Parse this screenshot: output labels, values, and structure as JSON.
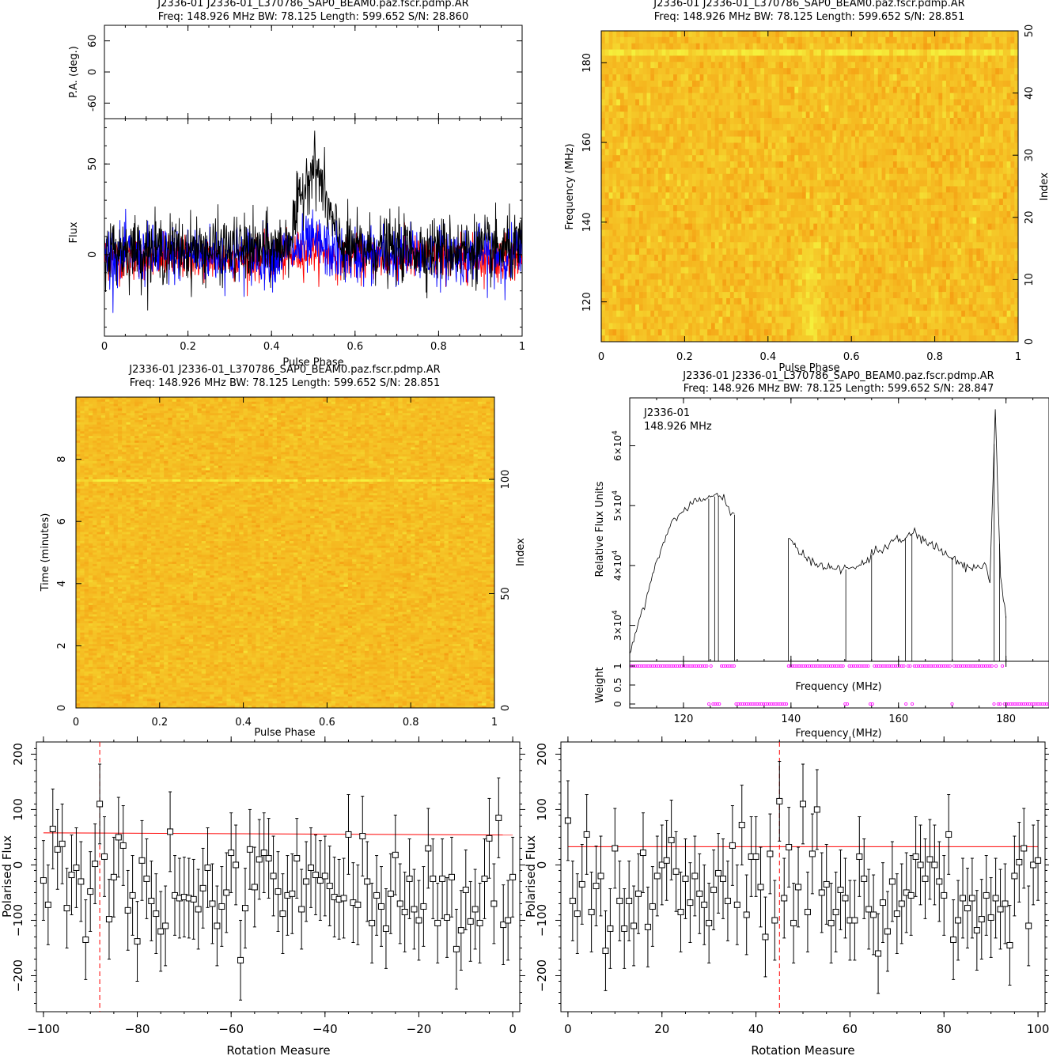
{
  "colors": {
    "background": "#ffffff",
    "axis": "#000000",
    "total_intensity": "#000000",
    "linear_pol": "#ff0000",
    "circular_pol": "#0000ff",
    "fit_line": "#ff0000",
    "weight_points": "#ff00ff",
    "colormap_low": "#e8a020",
    "colormap_high": "#ffee50"
  },
  "chart_data": [
    {
      "id": "profile",
      "type": "line",
      "title": "J2336-01 J2336-01_L370786_SAP0_BEAM0.paz.fscr.pdmp.AR",
      "subtitle": "Freq: 148.926 MHz BW: 78.125 Length: 599.652 S/N: 28.860",
      "xlabel": "Pulse Phase",
      "xlim": [
        0,
        1
      ],
      "x_ticks": [
        "0",
        "0.2",
        "0.4",
        "0.6",
        "0.8",
        "1"
      ],
      "pa_panel": {
        "ylabel": "P.A. (deg.)",
        "ylim": [
          -90,
          90
        ],
        "y_ticks": [
          "-60",
          "0",
          "60"
        ]
      },
      "flux_panel": {
        "ylabel": "Flux",
        "ylim": [
          -45,
          75
        ],
        "y_ticks": [
          "0",
          "50"
        ]
      },
      "series": [
        {
          "color": "#000000",
          "noise": 9,
          "baseline": 3,
          "pulse_center": 0.5,
          "pulse_width": 0.03,
          "pulse_height": 45
        },
        {
          "color": "#ff0000",
          "noise": 6,
          "baseline": -2,
          "pulse_center": 0.5,
          "pulse_width": 0.03,
          "pulse_height": 5
        },
        {
          "color": "#0000ff",
          "noise": 8,
          "baseline": 0,
          "pulse_center": 0.5,
          "pulse_width": 0.03,
          "pulse_height": 6
        }
      ]
    },
    {
      "id": "freq_phase",
      "type": "heatmap",
      "title": "J2336-01 J2336-01_L370786_SAP0_BEAM0.paz.fscr.pdmp.AR",
      "subtitle": "Freq: 148.926 MHz BW: 78.125 Length: 599.652 S/N: 28.851",
      "xlabel": "Pulse Phase",
      "ylabel": "Frequency (MHz)",
      "y2label": "Index",
      "xlim": [
        0,
        1
      ],
      "ylim": [
        110,
        188
      ],
      "y2lim": [
        0,
        50
      ],
      "x_ticks": [
        "0",
        "0.2",
        "0.4",
        "0.6",
        "0.8",
        "1"
      ],
      "y_ticks": [
        "120",
        "140",
        "160",
        "180"
      ],
      "y2_ticks": [
        "0",
        "10",
        "20",
        "30",
        "40",
        "50"
      ],
      "bright_channel_mhz": 183,
      "pulse_phase": 0.5
    },
    {
      "id": "time_phase",
      "type": "heatmap",
      "title": "J2336-01 J2336-01_L370786_SAP0_BEAM0.paz.fscr.pdmp.AR",
      "subtitle": "Freq: 148.926 MHz BW: 78.125 Length: 599.652 S/N: 28.851",
      "xlabel": "Pulse Phase",
      "ylabel": "Time (minutes)",
      "y2label": "Index",
      "xlim": [
        0,
        1
      ],
      "ylim": [
        0,
        10
      ],
      "y2lim": [
        0,
        136
      ],
      "x_ticks": [
        "0",
        "0.2",
        "0.4",
        "0.6",
        "0.8",
        "1"
      ],
      "y_ticks": [
        "0",
        "2",
        "4",
        "6",
        "8"
      ],
      "y2_ticks": [
        "0",
        "50",
        "100"
      ],
      "bright_subint_minutes": 7.3
    },
    {
      "id": "bandpass",
      "type": "line",
      "title": "J2336-01 J2336-01_L370786_SAP0_BEAM0.paz.fscr.pdmp.AR",
      "subtitle": "Freq: 148.926 MHz BW: 78.125 Length: 599.652 S/N: 28.847",
      "annotation": [
        "J2336-01",
        "148.926 MHz"
      ],
      "xlabel": "Frequency (MHz)",
      "ylabel": "Relative Flux Units",
      "xlim": [
        110,
        188
      ],
      "ylim": [
        24000,
        68000
      ],
      "x_ticks": [
        "120",
        "140",
        "160",
        "180"
      ],
      "y_tick_labels": [
        {
          "mant": "3×10",
          "exp": "4",
          "v": 30000
        },
        {
          "mant": "4×10",
          "exp": "4",
          "v": 40000
        },
        {
          "mant": "5×10",
          "exp": "4",
          "v": 50000
        },
        {
          "mant": "6×10",
          "exp": "4",
          "v": 60000
        }
      ],
      "weight_panel": {
        "ylabel": "Weight",
        "xlabel": "Frequency (MHz)",
        "y_ticks": [
          "0",
          "0.5",
          "1"
        ]
      },
      "x": [
        110,
        111,
        112,
        113,
        114,
        115,
        116,
        117,
        118,
        119,
        120,
        121,
        122,
        123,
        124,
        125,
        126,
        127,
        128,
        129.5,
        139.5,
        140.5,
        141,
        142,
        143,
        144,
        145,
        146,
        147,
        148,
        149,
        150,
        151,
        152,
        153,
        154,
        155,
        156,
        157,
        158,
        159,
        160,
        161,
        162,
        163,
        164,
        165,
        166,
        167,
        168,
        169,
        170,
        171,
        172,
        173,
        174,
        175,
        176,
        177,
        178,
        179,
        180
      ],
      "values": [
        25000,
        28500,
        31500,
        34500,
        37500,
        40500,
        43000,
        45500,
        47500,
        48500,
        49000,
        50000,
        50700,
        50800,
        51000,
        51200,
        51600,
        51700,
        50500,
        48500,
        44500,
        43500,
        42500,
        41700,
        41300,
        40800,
        40300,
        40000,
        39800,
        39500,
        39400,
        39300,
        39500,
        39600,
        40300,
        40900,
        41700,
        42400,
        42800,
        43500,
        44000,
        44200,
        44300,
        45000,
        45500,
        44800,
        44000,
        43500,
        43000,
        42400,
        41700,
        41300,
        40700,
        40000,
        39600,
        39700,
        39800,
        40300,
        37400,
        66000,
        38000,
        31500
      ],
      "zapped_channels_mhz": [
        124.7,
        125.8,
        126.5,
        150.2,
        155.0,
        161.3,
        162.5,
        170.0,
        177.8,
        178.8
      ],
      "weight_zero_ranges": [
        [
          129.5,
          139.5
        ],
        [
          179.5,
          188
        ]
      ]
    },
    {
      "id": "rm_neg",
      "type": "scatter",
      "xlabel": "Rotation Measure",
      "ylabel": "Polarised Flux",
      "xlim": [
        -101.5,
        1.5
      ],
      "ylim": [
        -265,
        222
      ],
      "x_ticks": [
        "−100",
        "−80",
        "−60",
        "−40",
        "−20",
        "0"
      ],
      "y_ticks": [
        "−200",
        "−100",
        "0",
        "100",
        "200"
      ],
      "rm_best": -88,
      "fit_line": [
        [
          -100,
          58
        ],
        [
          0,
          54
        ]
      ],
      "error": 72,
      "x": [
        -100,
        -99,
        -98,
        -97,
        -96,
        -95,
        -94,
        -93,
        -92,
        -91,
        -90,
        -89,
        -88,
        -87,
        -86,
        -85,
        -84,
        -83,
        -82,
        -81,
        -80,
        -79,
        -78,
        -77,
        -76,
        -75,
        -74,
        -73,
        -72,
        -71,
        -70,
        -69,
        -68,
        -67,
        -66,
        -65,
        -64,
        -63,
        -62,
        -61,
        -60,
        -59,
        -58,
        -57,
        -56,
        -55,
        -54,
        -53,
        -52,
        -51,
        -50,
        -49,
        -48,
        -47,
        -46,
        -45,
        -44,
        -43,
        -42,
        -41,
        -40,
        -39,
        -38,
        -37,
        -36,
        -35,
        -34,
        -33,
        -32,
        -31,
        -30,
        -29,
        -28,
        -27,
        -26,
        -25,
        -24,
        -23,
        -22,
        -21,
        -20,
        -19,
        -18,
        -17,
        -16,
        -15,
        -14,
        -13,
        -12,
        -11,
        -10,
        -9,
        -8,
        -7,
        -6,
        -5,
        -4,
        -3,
        -2,
        -1,
        0
      ],
      "y": [
        -28,
        -72,
        65,
        28,
        38,
        -78,
        -18,
        -5,
        -30,
        -135,
        -48,
        2,
        110,
        15,
        -98,
        -22,
        50,
        35,
        -82,
        -55,
        -138,
        8,
        -25,
        -65,
        -88,
        -120,
        -110,
        60,
        -55,
        -60,
        -58,
        -60,
        -62,
        -80,
        -42,
        -5,
        -70,
        -110,
        -75,
        -50,
        22,
        0,
        -172,
        -78,
        28,
        -40,
        10,
        22,
        12,
        -20,
        -48,
        -88,
        -55,
        -52,
        12,
        -80,
        -30,
        -5,
        -18,
        -28,
        -20,
        -38,
        -58,
        -62,
        -60,
        55,
        -68,
        -72,
        52,
        -30,
        -105,
        -55,
        -75,
        -115,
        -52,
        18,
        -70,
        -85,
        -25,
        -80,
        -100,
        -75,
        30,
        -25,
        -105,
        -25,
        -95,
        -22,
        -152,
        -118,
        -45,
        -102,
        -80,
        -105,
        -25,
        48,
        -70,
        85,
        -108,
        -100,
        -22
      ]
    },
    {
      "id": "rm_pos",
      "type": "scatter",
      "xlabel": "Rotation Measure",
      "ylabel": "Polarised Flux",
      "xlim": [
        -1.5,
        101.5
      ],
      "ylim": [
        -265,
        222
      ],
      "x_ticks": [
        "0",
        "20",
        "40",
        "60",
        "80",
        "100"
      ],
      "y_ticks": [
        "−200",
        "−100",
        "0",
        "100",
        "200"
      ],
      "rm_best": 45,
      "fit_line": [
        [
          0,
          33
        ],
        [
          100,
          33
        ]
      ],
      "error": 72,
      "x": [
        0,
        1,
        2,
        3,
        4,
        5,
        6,
        7,
        8,
        9,
        10,
        11,
        12,
        13,
        14,
        15,
        16,
        17,
        18,
        19,
        20,
        21,
        22,
        23,
        24,
        25,
        26,
        27,
        28,
        29,
        30,
        31,
        32,
        33,
        34,
        35,
        36,
        37,
        38,
        39,
        40,
        41,
        42,
        43,
        44,
        45,
        46,
        47,
        48,
        49,
        50,
        51,
        52,
        53,
        54,
        55,
        56,
        57,
        58,
        59,
        60,
        61,
        62,
        63,
        64,
        65,
        66,
        67,
        68,
        69,
        70,
        71,
        72,
        73,
        74,
        75,
        76,
        77,
        78,
        79,
        80,
        81,
        82,
        83,
        84,
        85,
        86,
        87,
        88,
        89,
        90,
        91,
        92,
        93,
        94,
        95,
        96,
        97,
        98,
        99,
        100
      ],
      "y": [
        80,
        -65,
        -88,
        -35,
        55,
        -85,
        -38,
        -20,
        -155,
        -115,
        30,
        -65,
        -115,
        -65,
        -110,
        -52,
        22,
        -112,
        -75,
        -20,
        0,
        8,
        45,
        -12,
        -85,
        -25,
        -68,
        -20,
        -52,
        -72,
        -105,
        -45,
        -15,
        -25,
        -65,
        35,
        -72,
        72,
        -90,
        15,
        15,
        -40,
        -130,
        20,
        -100,
        115,
        -60,
        32,
        -105,
        -40,
        110,
        -85,
        20,
        100,
        -50,
        -35,
        -105,
        -85,
        -45,
        -60,
        -100,
        -100,
        15,
        -25,
        -80,
        -90,
        -160,
        -68,
        -120,
        -30,
        -88,
        -70,
        -50,
        -55,
        15,
        0,
        -25,
        10,
        0,
        -30,
        -55,
        55,
        -135,
        -100,
        -60,
        -78,
        -60,
        -118,
        -98,
        -55,
        -95,
        -60,
        -80,
        -70,
        -145,
        -20,
        5,
        30,
        -110,
        0,
        8
      ]
    }
  ]
}
